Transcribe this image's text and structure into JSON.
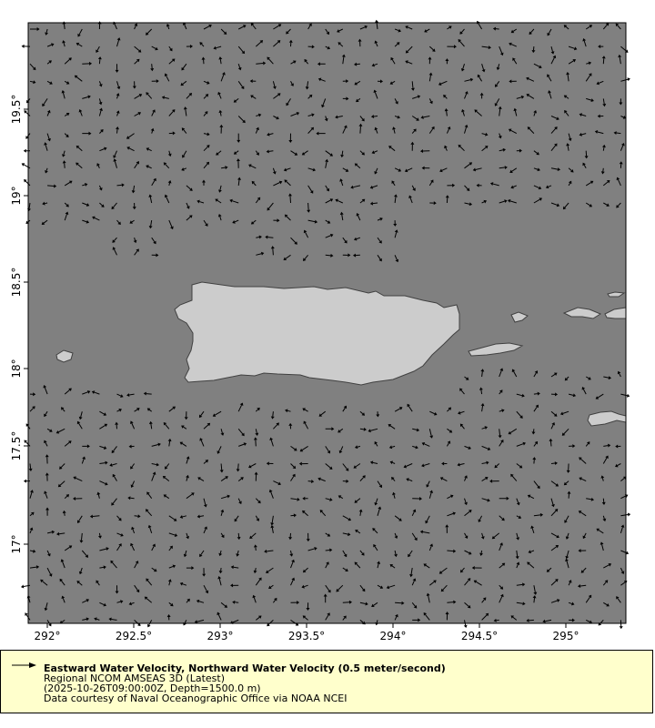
{
  "map": {
    "colors": {
      "ocean": "#808080",
      "land": "#cccccc",
      "coast": "#404040",
      "arrow": "#000000",
      "legend_bg": "#ffffcc"
    },
    "x_ticks": [
      "292°",
      "292.5°",
      "293°",
      "293.5°",
      "294°",
      "294.5°",
      "295°"
    ],
    "y_ticks": [
      "19.5°",
      "19°",
      "18.5°",
      "18°",
      "17.5°",
      "17°"
    ]
  },
  "legend": {
    "icon": "arrow-right-icon",
    "title": "Eastward Water Velocity, Northward Water Velocity (0.5 meter/second)",
    "dataset": "Regional NCOM AMSEAS 3D (Latest)",
    "time_depth": "(2025-10-26T09:00:00Z, Depth=1500.0 m)",
    "credit": "Data courtesy of Naval Oceanographic Office via NOAA NCEI"
  }
}
